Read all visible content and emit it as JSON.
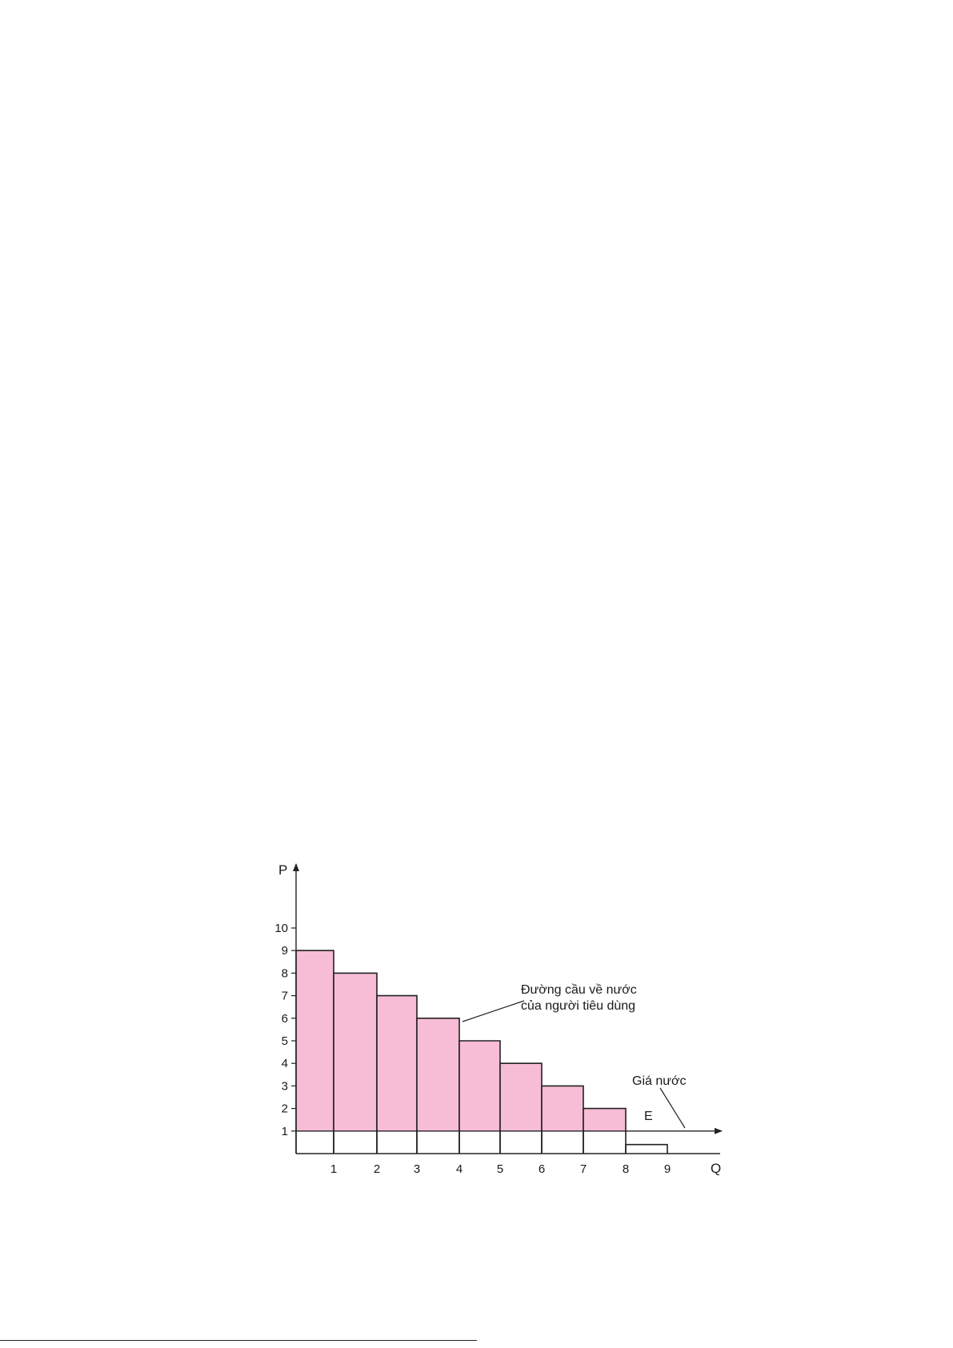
{
  "chart_data": {
    "type": "bar",
    "title": "",
    "xlabel": "Q",
    "ylabel": "P",
    "x_ticks": [
      "1",
      "2",
      "3",
      "4",
      "5",
      "6",
      "7",
      "8",
      "9"
    ],
    "y_ticks": [
      "1",
      "2",
      "3",
      "4",
      "5",
      "6",
      "7",
      "8",
      "9",
      "10"
    ],
    "bars": [
      {
        "q_from": 0,
        "q_to": 1,
        "value": 9
      },
      {
        "q_from": 1,
        "q_to": 2,
        "value": 8
      },
      {
        "q_from": 2,
        "q_to": 3,
        "value": 7
      },
      {
        "q_from": 3,
        "q_to": 4,
        "value": 6
      },
      {
        "q_from": 4,
        "q_to": 5,
        "value": 5
      },
      {
        "q_from": 5,
        "q_to": 6,
        "value": 4
      },
      {
        "q_from": 6,
        "q_to": 7,
        "value": 3
      },
      {
        "q_from": 7,
        "q_to": 8,
        "value": 2
      },
      {
        "q_from": 8,
        "q_to": 9,
        "value": 0.4
      }
    ],
    "price_line": {
      "value": 1,
      "point_label": "E"
    },
    "annotations": {
      "demand_curve": [
        "Đường cầu về nước",
        "của người tiêu dùng"
      ],
      "price": "Giá nước"
    },
    "colors": {
      "surplus_fill": "#f7bcd6",
      "stroke": "#222222"
    }
  }
}
